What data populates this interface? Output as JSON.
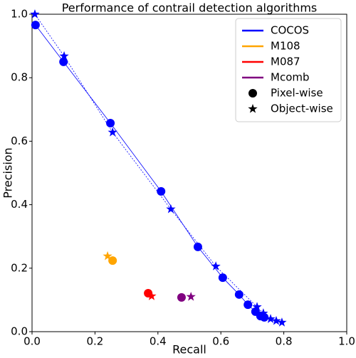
{
  "chart_data": {
    "type": "scatter",
    "title": "Performance of contrail detection algorithms",
    "x_label": "Recall",
    "y_label": "Precision",
    "xlim": [
      0,
      1
    ],
    "ylim": [
      0,
      1
    ],
    "xticks": [
      {
        "value": 0,
        "label": "0.0"
      },
      {
        "value": 0.2,
        "label": "0.2"
      },
      {
        "value": 0.4,
        "label": "0.4"
      },
      {
        "value": 0.6,
        "label": "0.6"
      },
      {
        "value": 0.8,
        "label": "0.8"
      },
      {
        "value": 1,
        "label": "1.0"
      }
    ],
    "yticks": [
      {
        "value": 0,
        "label": "0.0"
      },
      {
        "value": 0.2,
        "label": "0.2"
      },
      {
        "value": 0.4,
        "label": "0.4"
      },
      {
        "value": 0.6,
        "label": "0.6"
      },
      {
        "value": 0.8,
        "label": "0.8"
      },
      {
        "value": 1,
        "label": "1.0"
      }
    ],
    "marker_legend": [
      "Pixel-wise",
      "Object-wise"
    ],
    "series": [
      {
        "name": "COCOS",
        "color": "#0000ff",
        "pixel": {
          "x": [
            0.011,
            0.1,
            0.249,
            0.41,
            0.527,
            0.606,
            0.658,
            0.686,
            0.71,
            0.726,
            0.738
          ],
          "y": [
            0.966,
            0.85,
            0.657,
            0.442,
            0.267,
            0.17,
            0.117,
            0.085,
            0.063,
            0.049,
            0.045
          ]
        },
        "object": {
          "x": [
            0.009,
            0.102,
            0.256,
            0.441,
            0.584,
            0.715,
            0.735,
            0.758,
            0.776,
            0.794
          ],
          "y": [
            1.0,
            0.868,
            0.628,
            0.386,
            0.206,
            0.078,
            0.058,
            0.04,
            0.034,
            0.029
          ]
        }
      },
      {
        "name": "M108",
        "color": "#ffa500",
        "pixel": {
          "x": [
            0.256
          ],
          "y": [
            0.224
          ]
        },
        "object": {
          "x": [
            0.24
          ],
          "y": [
            0.238
          ]
        }
      },
      {
        "name": "M087",
        "color": "#ff0000",
        "pixel": {
          "x": [
            0.369
          ],
          "y": [
            0.121
          ]
        },
        "object": {
          "x": [
            0.38
          ],
          "y": [
            0.112
          ]
        }
      },
      {
        "name": "Mcomb",
        "color": "#800080",
        "pixel": {
          "x": [
            0.475
          ],
          "y": [
            0.108
          ]
        },
        "object": {
          "x": [
            0.505
          ],
          "y": [
            0.11
          ]
        }
      }
    ]
  }
}
